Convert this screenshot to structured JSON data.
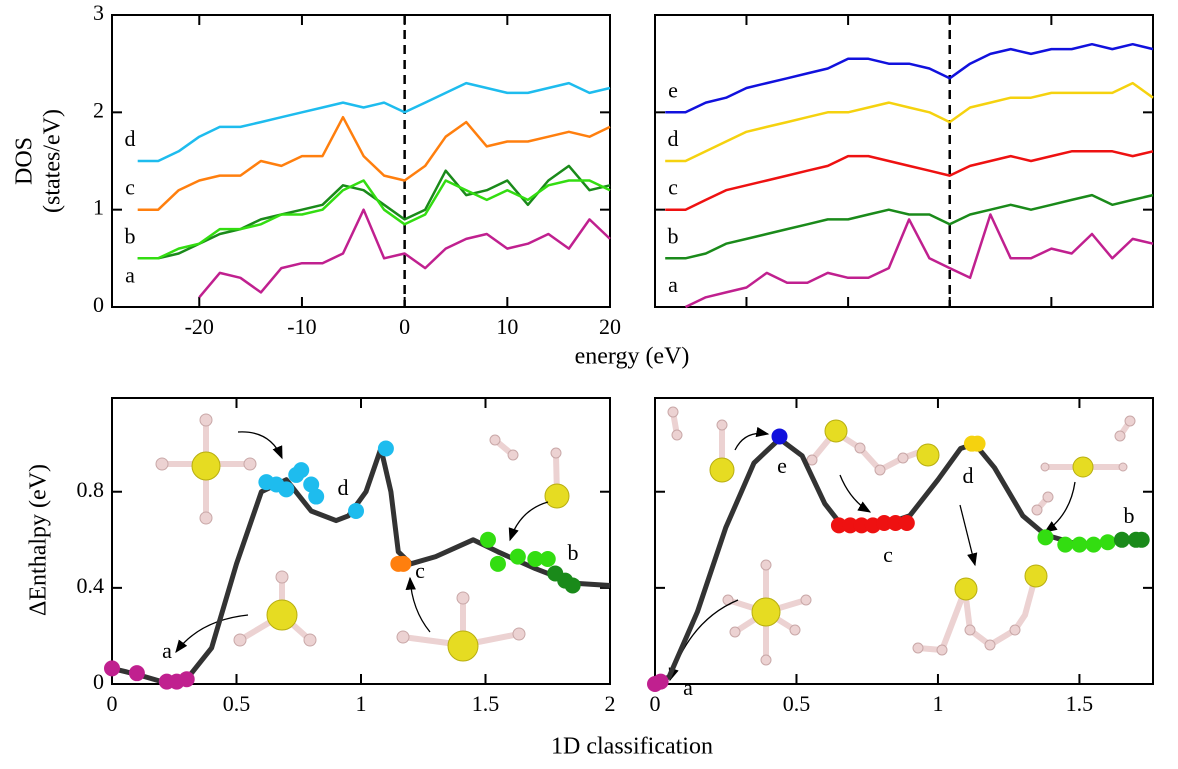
{
  "chart_data": [
    {
      "type": "line",
      "ylabel": [
        "DOS",
        "(states/eV)"
      ],
      "xlabel": "energy (eV)",
      "xlim": [
        -28.5,
        20
      ],
      "ylim": [
        0,
        3
      ],
      "xticks": [
        -20,
        -10,
        0,
        10,
        20
      ],
      "yticks": [
        0,
        1,
        2,
        3
      ],
      "tick_labels": true,
      "vline": 0,
      "x": [
        -26,
        -24,
        -22,
        -20,
        -18,
        -16,
        -14,
        -12,
        -10,
        -8,
        -6,
        -4,
        -2,
        0,
        2,
        4,
        6,
        8,
        10,
        12,
        14,
        16,
        18,
        20
      ],
      "series": [
        {
          "name": "a",
          "color": "#c0208f",
          "values": [
            null,
            null,
            null,
            0.1,
            0.35,
            0.3,
            0.15,
            0.4,
            0.45,
            0.45,
            0.55,
            1.0,
            0.5,
            0.55,
            0.4,
            0.6,
            0.7,
            0.75,
            0.6,
            0.65,
            0.75,
            0.6,
            0.9,
            0.7
          ]
        },
        {
          "name": "b",
          "color": "#1a8a1a",
          "values": [
            0.5,
            0.5,
            0.55,
            0.65,
            0.75,
            0.8,
            0.9,
            0.95,
            1.0,
            1.05,
            1.25,
            1.2,
            1.05,
            0.9,
            1.0,
            1.4,
            1.15,
            1.2,
            1.3,
            1.05,
            1.3,
            1.45,
            1.2,
            1.25
          ]
        },
        {
          "color": "#33dd11",
          "values": [
            0.5,
            0.5,
            0.6,
            0.65,
            0.8,
            0.8,
            0.85,
            0.95,
            0.95,
            1.0,
            1.2,
            1.3,
            1.0,
            0.85,
            0.95,
            1.3,
            1.2,
            1.1,
            1.2,
            1.1,
            1.25,
            1.3,
            1.3,
            1.2
          ]
        },
        {
          "name": "c",
          "color": "#ff7f0e",
          "values": [
            1.0,
            1.0,
            1.2,
            1.3,
            1.35,
            1.35,
            1.5,
            1.45,
            1.55,
            1.55,
            1.95,
            1.55,
            1.35,
            1.3,
            1.45,
            1.75,
            1.9,
            1.65,
            1.7,
            1.7,
            1.75,
            1.8,
            1.75,
            1.85
          ]
        },
        {
          "name": "d",
          "color": "#1ebcee",
          "values": [
            1.5,
            1.5,
            1.6,
            1.75,
            1.85,
            1.85,
            1.9,
            1.95,
            2.0,
            2.05,
            2.1,
            2.05,
            2.1,
            2.0,
            2.1,
            2.2,
            2.3,
            2.25,
            2.2,
            2.2,
            2.25,
            2.3,
            2.2,
            2.25
          ]
        }
      ]
    },
    {
      "type": "line",
      "xlim": [
        -29,
        20
      ],
      "ylim": [
        0,
        3
      ],
      "xticks": [
        -20,
        -10,
        0,
        10,
        20
      ],
      "yticks": [
        0,
        1,
        2,
        3
      ],
      "tick_labels": false,
      "vline": 0,
      "x": [
        -28,
        -26,
        -24,
        -22,
        -20,
        -18,
        -16,
        -14,
        -12,
        -10,
        -8,
        -6,
        -4,
        -2,
        0,
        2,
        4,
        6,
        8,
        10,
        12,
        14,
        16,
        18,
        20
      ],
      "series": [
        {
          "name": "a",
          "color": "#c0208f",
          "values": [
            null,
            0.0,
            0.1,
            0.15,
            0.2,
            0.35,
            0.25,
            0.25,
            0.35,
            0.3,
            0.3,
            0.4,
            0.9,
            0.5,
            0.4,
            0.3,
            0.95,
            0.5,
            0.5,
            0.6,
            0.55,
            0.75,
            0.5,
            0.7,
            0.65
          ]
        },
        {
          "name": "b",
          "color": "#1a8a1a",
          "values": [
            0.5,
            0.5,
            0.55,
            0.65,
            0.7,
            0.75,
            0.8,
            0.85,
            0.9,
            0.9,
            0.95,
            1.0,
            0.95,
            0.95,
            0.85,
            0.95,
            1.0,
            1.05,
            1.0,
            1.05,
            1.1,
            1.15,
            1.05,
            1.1,
            1.15
          ]
        },
        {
          "name": "c",
          "color": "#ee1111",
          "values": [
            1.0,
            1.0,
            1.1,
            1.2,
            1.25,
            1.3,
            1.35,
            1.4,
            1.45,
            1.55,
            1.55,
            1.5,
            1.45,
            1.4,
            1.35,
            1.45,
            1.5,
            1.55,
            1.5,
            1.55,
            1.6,
            1.6,
            1.6,
            1.55,
            1.6
          ]
        },
        {
          "name": "d",
          "color": "#f5d20f",
          "values": [
            1.5,
            1.5,
            1.6,
            1.7,
            1.8,
            1.85,
            1.9,
            1.95,
            2.0,
            2.0,
            2.05,
            2.1,
            2.05,
            2.0,
            1.9,
            2.05,
            2.1,
            2.15,
            2.15,
            2.2,
            2.2,
            2.2,
            2.2,
            2.3,
            2.15
          ]
        },
        {
          "name": "e",
          "color": "#1111dd",
          "values": [
            2.0,
            2.0,
            2.1,
            2.15,
            2.25,
            2.3,
            2.35,
            2.4,
            2.45,
            2.55,
            2.55,
            2.5,
            2.5,
            2.45,
            2.35,
            2.5,
            2.6,
            2.65,
            2.6,
            2.65,
            2.65,
            2.7,
            2.65,
            2.7,
            2.65
          ]
        }
      ]
    },
    {
      "type": "scatter",
      "ylabel": "ΔEnthalpy (eV)",
      "xlabel": "1D classification",
      "xlim": [
        0,
        2
      ],
      "ylim": [
        0,
        1.19
      ],
      "xticks": [
        0,
        0.5,
        1,
        1.5,
        2
      ],
      "yticks": [
        0,
        0.4,
        0.8
      ],
      "tick_labels": true,
      "curve": {
        "color": "#333333",
        "x": [
          0,
          0.1,
          0.2,
          0.3,
          0.4,
          0.5,
          0.6,
          0.7,
          0.8,
          0.9,
          0.95,
          1.02,
          1.08,
          1.12,
          1.15,
          1.2,
          1.3,
          1.45,
          1.55,
          1.7,
          1.85,
          2
        ],
        "values": [
          0.065,
          0.04,
          0.01,
          0.02,
          0.15,
          0.5,
          0.8,
          0.85,
          0.72,
          0.68,
          0.7,
          0.8,
          0.98,
          0.8,
          0.55,
          0.5,
          0.53,
          0.6,
          0.55,
          0.48,
          0.42,
          0.41
        ]
      },
      "series": [
        {
          "name": "a",
          "color": "#c0208f",
          "x": [
            0,
            0.1,
            0.22,
            0.26,
            0.3
          ],
          "values": [
            0.065,
            0.045,
            0.01,
            0.01,
            0.02
          ]
        },
        {
          "name": "d",
          "color": "#1ebcee",
          "x": [
            0.62,
            0.66,
            0.7,
            0.74,
            0.76,
            0.8,
            0.82,
            0.98,
            1.1
          ],
          "values": [
            0.84,
            0.83,
            0.81,
            0.87,
            0.89,
            0.83,
            0.78,
            0.72,
            0.98
          ]
        },
        {
          "name": "c",
          "color": "#ff7f0e",
          "x": [
            1.15,
            1.17
          ],
          "values": [
            0.5,
            0.5
          ]
        },
        {
          "name": "b",
          "color": "#33dd11",
          "x": [
            1.51,
            1.55,
            1.63,
            1.7,
            1.75
          ],
          "values": [
            0.6,
            0.5,
            0.53,
            0.52,
            0.52
          ]
        },
        {
          "color": "#1a8a1a",
          "x": [
            1.78,
            1.82,
            1.85
          ],
          "values": [
            0.46,
            0.43,
            0.41
          ]
        }
      ]
    },
    {
      "type": "scatter",
      "xlim": [
        0,
        1.76
      ],
      "ylim": [
        0,
        1.19
      ],
      "xticks": [
        0,
        0.5,
        1,
        1.5
      ],
      "yticks": [
        0,
        0.4,
        0.8
      ],
      "tick_labels": true,
      "ytick_labels": false,
      "curve": {
        "color": "#333333",
        "x": [
          0,
          0.05,
          0.15,
          0.25,
          0.35,
          0.44,
          0.52,
          0.6,
          0.66,
          0.8,
          0.9,
          1.0,
          1.08,
          1.13,
          1.2,
          1.3,
          1.38,
          1.5,
          1.65,
          1.72
        ],
        "values": [
          0,
          0.03,
          0.3,
          0.65,
          0.92,
          1.02,
          0.95,
          0.75,
          0.66,
          0.66,
          0.7,
          0.85,
          0.98,
          1.0,
          0.9,
          0.7,
          0.62,
          0.58,
          0.6,
          0.6
        ]
      },
      "series": [
        {
          "name": "a",
          "color": "#c0208f",
          "x": [
            0,
            0.02
          ],
          "values": [
            0,
            0.01
          ]
        },
        {
          "name": "e",
          "color": "#1111dd",
          "x": [
            0.44
          ],
          "values": [
            1.03
          ]
        },
        {
          "name": "c",
          "color": "#ee1111",
          "x": [
            0.65,
            0.69,
            0.73,
            0.77,
            0.81,
            0.85,
            0.89
          ],
          "values": [
            0.66,
            0.66,
            0.66,
            0.66,
            0.67,
            0.67,
            0.67
          ]
        },
        {
          "name": "d",
          "color": "#f5d20f",
          "x": [
            1.12,
            1.14
          ],
          "values": [
            1.0,
            1.0
          ]
        },
        {
          "name": "b",
          "color": "#33dd11",
          "x": [
            1.38,
            1.45,
            1.5,
            1.55,
            1.6
          ],
          "values": [
            0.61,
            0.58,
            0.58,
            0.58,
            0.59
          ]
        },
        {
          "color": "#1a8a1a",
          "x": [
            1.65,
            1.7,
            1.72
          ],
          "values": [
            0.6,
            0.6,
            0.6
          ]
        }
      ]
    }
  ]
}
